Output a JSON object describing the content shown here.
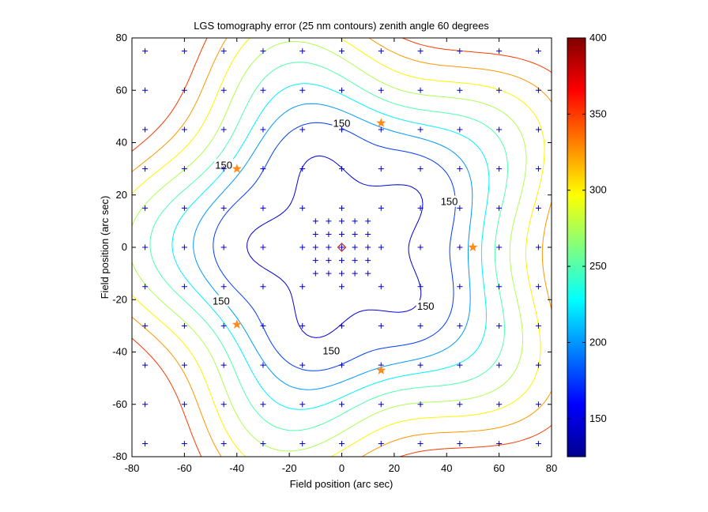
{
  "chart_data": {
    "type": "contour",
    "title": "LGS tomography error (25 nm contours) zenith angle 60 degrees",
    "xlabel": "Field position (arc sec)",
    "ylabel": "Field position (arc sec)",
    "xlim": [
      -80,
      80
    ],
    "ylim": [
      -80,
      80
    ],
    "xticks": [
      "-80",
      "-60",
      "-40",
      "-20",
      "0",
      "20",
      "40",
      "60",
      "80"
    ],
    "yticks": [
      "-80",
      "-60",
      "-40",
      "-20",
      "0",
      "20",
      "40",
      "60",
      "80"
    ],
    "colorbar": {
      "range": [
        125,
        400
      ],
      "ticks": [
        "150",
        "200",
        "250",
        "300",
        "350",
        "400"
      ],
      "colormap": "jet"
    },
    "contour_levels": [
      150,
      175,
      200,
      225,
      250,
      275,
      300,
      325,
      350
    ],
    "contour_labels": [
      "150",
      "150",
      "150",
      "150",
      "150",
      "150"
    ],
    "sample_grid_coarse": [
      -75,
      -60,
      -45,
      -30,
      -15,
      0,
      15,
      30,
      45,
      60,
      75
    ],
    "sample_grid_fine": [
      -10,
      -5,
      0,
      5,
      10
    ],
    "lgs_stars": [
      {
        "x": 15,
        "y": 47.5
      },
      {
        "x": -40,
        "y": 30
      },
      {
        "x": 50,
        "y": 0
      },
      {
        "x": -40,
        "y": -29.5
      },
      {
        "x": 15,
        "y": -47
      }
    ],
    "center_marker": {
      "x": 0,
      "y": 0
    },
    "colors": {
      "grid_marker": "#0000cc",
      "star": "#ff8c1a",
      "center_marker": "#cc0000"
    }
  }
}
